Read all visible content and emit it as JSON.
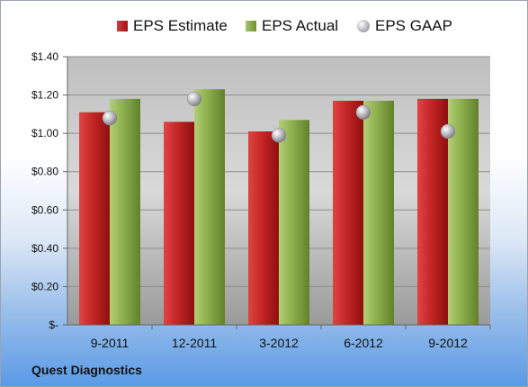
{
  "company": "Quest Diagnostics",
  "legend": {
    "estimate": "EPS Estimate",
    "actual": "EPS Actual",
    "gaap": "EPS GAAP"
  },
  "colors": {
    "estimate": "#c0282a",
    "actual": "#8aac4a",
    "gaap": "#a9a9ad"
  },
  "chart_data": {
    "type": "bar",
    "categories": [
      "9-2011",
      "12-2011",
      "3-2012",
      "6-2012",
      "9-2012"
    ],
    "series": [
      {
        "name": "EPS Estimate",
        "values": [
          1.11,
          1.06,
          1.01,
          1.17,
          1.18
        ]
      },
      {
        "name": "EPS Actual",
        "values": [
          1.18,
          1.23,
          1.07,
          1.17,
          1.18
        ]
      },
      {
        "name": "EPS GAAP",
        "values": [
          1.08,
          1.18,
          0.99,
          1.11,
          1.01
        ]
      }
    ],
    "ylim": [
      0,
      1.4
    ],
    "yticks": [
      0,
      0.2,
      0.4,
      0.6,
      0.8,
      1.0,
      1.2,
      1.4
    ],
    "ytick_labels": [
      "$-",
      "$0.20",
      "$0.40",
      "$0.60",
      "$0.80",
      "$1.00",
      "$1.20",
      "$1.40"
    ],
    "grid": true,
    "legend_position": "top"
  }
}
